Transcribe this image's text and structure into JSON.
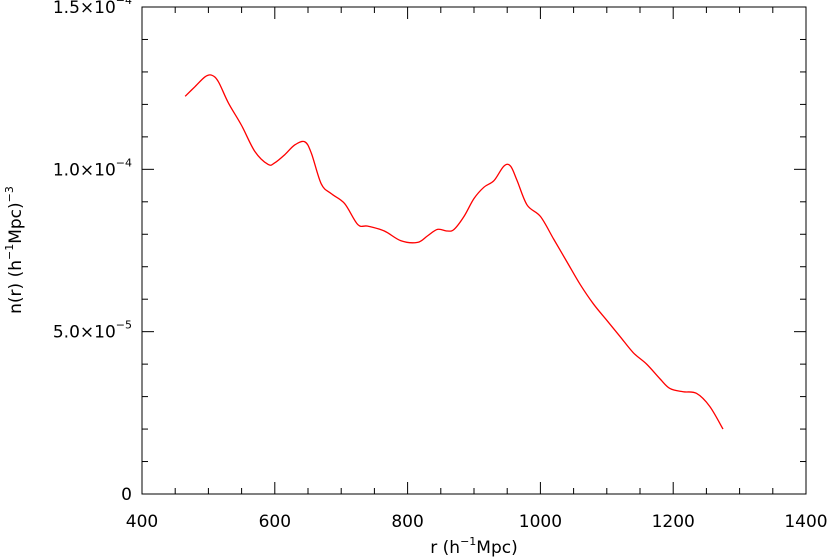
{
  "chart_data": {
    "type": "line",
    "title": "",
    "xlabel": {
      "base": "r (h",
      "sup": "−1",
      "rest": "Mpc)"
    },
    "ylabel": {
      "base": "n(r) (h",
      "sup": "−1",
      "rest": "Mpc)",
      "sup2": "−3"
    },
    "xlim": [
      400,
      1400
    ],
    "ylim": [
      0,
      0.00015
    ],
    "grid": false,
    "line_color": "#ff0000",
    "x_ticks": [
      {
        "value": 400,
        "label": "400"
      },
      {
        "value": 600,
        "label": "600"
      },
      {
        "value": 800,
        "label": "800"
      },
      {
        "value": 1000,
        "label": "1000"
      },
      {
        "value": 1200,
        "label": "1200"
      },
      {
        "value": 1400,
        "label": "1400"
      }
    ],
    "y_ticks": [
      {
        "value": 0,
        "mant": "0",
        "exp": ""
      },
      {
        "value": 5e-05,
        "mant": "5.0×10",
        "exp": "−5"
      },
      {
        "value": 0.0001,
        "mant": "1.0×10",
        "exp": "−4"
      },
      {
        "value": 0.00015,
        "mant": "1.5×10",
        "exp": "−4"
      }
    ],
    "series": [
      {
        "x": [
          465,
          480,
          495,
          505,
          515,
          530,
          550,
          570,
          590,
          600,
          615,
          630,
          645,
          655,
          670,
          685,
          705,
          725,
          740,
          765,
          790,
          815,
          830,
          845,
          860,
          870,
          885,
          900,
          915,
          930,
          945,
          955,
          965,
          980,
          1000,
          1020,
          1040,
          1060,
          1080,
          1100,
          1120,
          1140,
          1160,
          1180,
          1195,
          1215,
          1235,
          1255,
          1275
        ],
        "y": [
          0.0001225,
          0.0001255,
          0.0001285,
          0.000129,
          0.000127,
          0.0001205,
          0.0001135,
          0.0001055,
          0.0001015,
          0.000102,
          0.0001045,
          0.0001075,
          0.0001085,
          0.000105,
          9.55e-05,
          9.25e-05,
          8.95e-05,
          8.3e-05,
          8.25e-05,
          8.1e-05,
          7.8e-05,
          7.75e-05,
          7.95e-05,
          8.15e-05,
          8.1e-05,
          8.15e-05,
          8.55e-05,
          9.1e-05,
          9.45e-05,
          9.65e-05,
          0.000101,
          0.000101,
          9.65e-05,
          8.9e-05,
          8.55e-05,
          7.85e-05,
          7.15e-05,
          6.45e-05,
          5.85e-05,
          5.35e-05,
          4.85e-05,
          4.35e-05,
          4e-05,
          3.55e-05,
          3.25e-05,
          3.15e-05,
          3.1e-05,
          2.7e-05,
          2e-05
        ]
      }
    ]
  }
}
